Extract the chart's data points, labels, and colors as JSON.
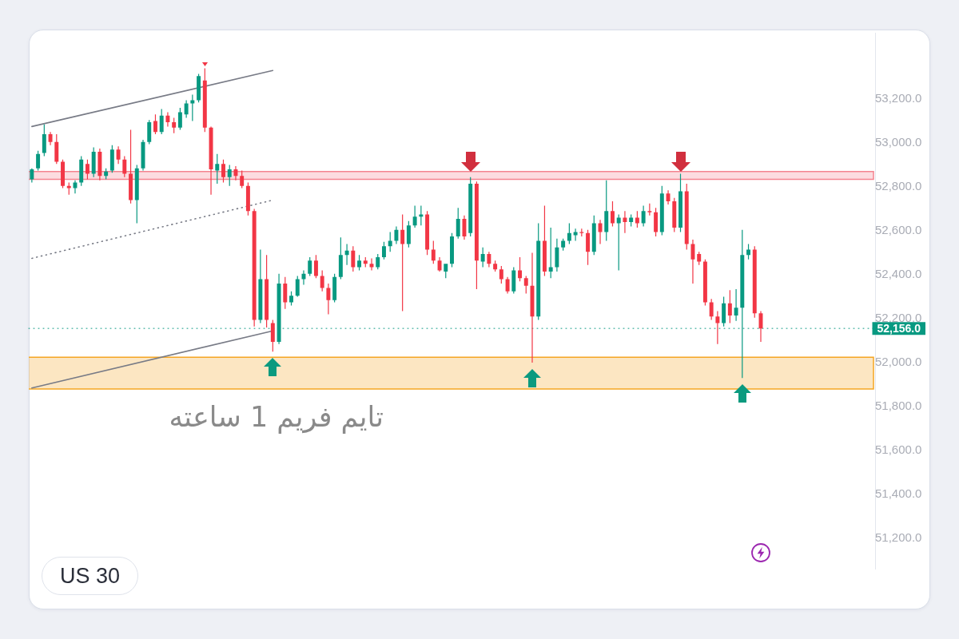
{
  "chart_data": {
    "type": "candlestick",
    "title": "US 30",
    "annotations": [
      "تایم فریم 1 ساعته"
    ],
    "categories": [
      null,
      null,
      null,
      null,
      null,
      null,
      null,
      null,
      null,
      null,
      null,
      null,
      null,
      null,
      null,
      null,
      null,
      null,
      null,
      null,
      null,
      null,
      null,
      null,
      null,
      null,
      null,
      null,
      null,
      null,
      null,
      null,
      null,
      null,
      null,
      null,
      null,
      null,
      null,
      null,
      null,
      null,
      null,
      null,
      null,
      null,
      null,
      null,
      null,
      null,
      null,
      null,
      null,
      null,
      null,
      null,
      null,
      null,
      null,
      null,
      null,
      null,
      null,
      null,
      null,
      null,
      null,
      null,
      null,
      null,
      null,
      null,
      null,
      null,
      null,
      null,
      null,
      null,
      null,
      null,
      null,
      null,
      null,
      null,
      null,
      null,
      null,
      null,
      null,
      null,
      null,
      null,
      null,
      null,
      null,
      null,
      null,
      null,
      null,
      null,
      null,
      null,
      null,
      null,
      null,
      null,
      null,
      null,
      null,
      null,
      null,
      null,
      null,
      null,
      null,
      null,
      null,
      null,
      null,
      null,
      null,
      null,
      null,
      null,
      null,
      null,
      null,
      null,
      null,
      null,
      null,
      null,
      null,
      null,
      null,
      null,
      null
    ],
    "series": [
      {
        "type": "candlestick",
        "ohlc": [
          [
            52835,
            52885,
            52820,
            52880
          ],
          [
            52885,
            52965,
            52875,
            52950
          ],
          [
            52955,
            53085,
            52940,
            53040
          ],
          [
            53040,
            53050,
            52990,
            53005
          ],
          [
            53005,
            53040,
            52905,
            52915
          ],
          [
            52915,
            52925,
            52795,
            52805
          ],
          [
            52805,
            52820,
            52765,
            52795
          ],
          [
            52795,
            52830,
            52770,
            52820
          ],
          [
            52820,
            52940,
            52805,
            52925
          ],
          [
            52905,
            52925,
            52835,
            52860
          ],
          [
            52860,
            52980,
            52845,
            52960
          ],
          [
            52960,
            52975,
            52830,
            52850
          ],
          [
            52850,
            52885,
            52835,
            52870
          ],
          [
            52875,
            52990,
            52865,
            52970
          ],
          [
            52970,
            52985,
            52905,
            52925
          ],
          [
            52925,
            52940,
            52845,
            52860
          ],
          [
            52860,
            53060,
            52725,
            52740
          ],
          [
            52740,
            52900,
            52635,
            52885
          ],
          [
            52885,
            53015,
            52875,
            53005
          ],
          [
            53005,
            53105,
            52995,
            53095
          ],
          [
            53100,
            53130,
            53040,
            53050
          ],
          [
            53050,
            53155,
            53040,
            53125
          ],
          [
            53125,
            53140,
            53075,
            53095
          ],
          [
            53095,
            53115,
            53045,
            53070
          ],
          [
            53070,
            53160,
            53060,
            53140
          ],
          [
            53130,
            53195,
            53115,
            53180
          ],
          [
            53180,
            53220,
            53100,
            53195
          ],
          [
            53195,
            53315,
            53185,
            53305
          ],
          [
            53285,
            53340,
            53050,
            53070
          ],
          [
            53070,
            53075,
            52765,
            52880
          ],
          [
            52875,
            52950,
            52815,
            52905
          ],
          [
            52905,
            52925,
            52820,
            52845
          ],
          [
            52845,
            52900,
            52805,
            52880
          ],
          [
            52880,
            52895,
            52830,
            52850
          ],
          [
            52850,
            52875,
            52795,
            52805
          ],
          [
            52805,
            52820,
            52670,
            52690
          ],
          [
            52690,
            52700,
            52165,
            52195
          ],
          [
            52195,
            52515,
            52180,
            52380
          ],
          [
            52380,
            52490,
            52160,
            52195
          ],
          [
            52180,
            52195,
            52050,
            52095
          ],
          [
            52095,
            52405,
            52085,
            52360
          ],
          [
            52360,
            52390,
            52245,
            52275
          ],
          [
            52275,
            52325,
            52260,
            52305
          ],
          [
            52305,
            52395,
            52300,
            52380
          ],
          [
            52380,
            52420,
            52355,
            52405
          ],
          [
            52405,
            52480,
            52395,
            52465
          ],
          [
            52465,
            52490,
            52385,
            52395
          ],
          [
            52395,
            52420,
            52325,
            52340
          ],
          [
            52340,
            52360,
            52220,
            52285
          ],
          [
            52285,
            52405,
            52275,
            52390
          ],
          [
            52390,
            52570,
            52380,
            52490
          ],
          [
            52490,
            52540,
            52445,
            52510
          ],
          [
            52510,
            52530,
            52415,
            52435
          ],
          [
            52435,
            52490,
            52420,
            52465
          ],
          [
            52465,
            52480,
            52435,
            52450
          ],
          [
            52450,
            52475,
            52420,
            52435
          ],
          [
            52435,
            52495,
            52425,
            52480
          ],
          [
            52480,
            52550,
            52470,
            52530
          ],
          [
            52530,
            52595,
            52505,
            52555
          ],
          [
            52555,
            52620,
            52540,
            52605
          ],
          [
            52605,
            52675,
            52235,
            52540
          ],
          [
            52540,
            52645,
            52525,
            52625
          ],
          [
            52625,
            52715,
            52615,
            52665
          ],
          [
            52665,
            52715,
            52625,
            52675
          ],
          [
            52675,
            52690,
            52490,
            52515
          ],
          [
            52515,
            52555,
            52450,
            52465
          ],
          [
            52465,
            52480,
            52415,
            52420
          ],
          [
            52415,
            52450,
            52385,
            52450
          ],
          [
            52450,
            52590,
            52435,
            52575
          ],
          [
            52575,
            52705,
            52565,
            52655
          ],
          [
            52655,
            52670,
            52560,
            52575
          ],
          [
            52590,
            52845,
            52575,
            52815
          ],
          [
            52815,
            52825,
            52335,
            52465
          ],
          [
            52460,
            52525,
            52435,
            52495
          ],
          [
            52495,
            52505,
            52435,
            52450
          ],
          [
            52450,
            52465,
            52415,
            52425
          ],
          [
            52425,
            52440,
            52360,
            52380
          ],
          [
            52380,
            52390,
            52315,
            52325
          ],
          [
            52325,
            52435,
            52315,
            52420
          ],
          [
            52420,
            52480,
            52370,
            52385
          ],
          [
            52385,
            52395,
            52315,
            52350
          ],
          [
            52350,
            52500,
            52000,
            52210
          ],
          [
            52210,
            52635,
            52195,
            52555
          ],
          [
            52555,
            52715,
            52395,
            52415
          ],
          [
            52415,
            52615,
            52385,
            52435
          ],
          [
            52435,
            52565,
            52415,
            52525
          ],
          [
            52525,
            52565,
            52510,
            52555
          ],
          [
            52555,
            52635,
            52540,
            52590
          ],
          [
            52580,
            52610,
            52555,
            52595
          ],
          [
            52595,
            52610,
            52575,
            52590
          ],
          [
            52590,
            52605,
            52445,
            52505
          ],
          [
            52505,
            52670,
            52490,
            52635
          ],
          [
            52635,
            52650,
            52540,
            52595
          ],
          [
            52595,
            52830,
            52555,
            52690
          ],
          [
            52690,
            52735,
            52620,
            52635
          ],
          [
            52635,
            52675,
            52420,
            52660
          ],
          [
            52660,
            52690,
            52590,
            52640
          ],
          [
            52640,
            52675,
            52620,
            52660
          ],
          [
            52660,
            52690,
            52615,
            52635
          ],
          [
            52635,
            52715,
            52620,
            52690
          ],
          [
            52690,
            52725,
            52670,
            52685
          ],
          [
            52685,
            52705,
            52575,
            52595
          ],
          [
            52595,
            52805,
            52580,
            52770
          ],
          [
            52770,
            52785,
            52720,
            52735
          ],
          [
            52735,
            52750,
            52595,
            52615
          ],
          [
            52615,
            52860,
            52595,
            52780
          ],
          [
            52780,
            52815,
            52515,
            52540
          ],
          [
            52540,
            52560,
            52360,
            52470
          ],
          [
            52495,
            52505,
            52445,
            52460
          ],
          [
            52460,
            52470,
            52260,
            52275
          ],
          [
            52275,
            52290,
            52195,
            52210
          ],
          [
            52210,
            52235,
            52085,
            52180
          ],
          [
            52180,
            52300,
            52165,
            52270
          ],
          [
            52270,
            52330,
            52180,
            52215
          ],
          [
            52215,
            52335,
            52190,
            52250
          ],
          [
            52250,
            52605,
            51930,
            52490
          ],
          [
            52490,
            52540,
            52470,
            52515
          ],
          [
            52515,
            52530,
            52205,
            52225
          ],
          [
            52225,
            52235,
            52095,
            52156
          ],
          null,
          null,
          null,
          null,
          null,
          null,
          null,
          null,
          null,
          null,
          null,
          null,
          null,
          null,
          null,
          null,
          null,
          null
        ],
        "colors": [
          "#089981",
          "#089981",
          "#089981",
          "#f23645",
          "#f23645",
          "#f23645",
          "#f23645",
          "#089981",
          "#089981",
          "#f23645",
          "#089981",
          "#f23645",
          "#089981",
          "#089981",
          "#f23645",
          "#f23645",
          "#f23645",
          "#089981",
          "#089981",
          "#089981",
          "#f23645",
          "#089981",
          "#f23645",
          "#f23645",
          "#089981",
          "#089981",
          "#089981",
          "#089981",
          "#f23645",
          "#f23645",
          "#089981",
          "#f23645",
          "#089981",
          "#f23645",
          "#f23645",
          "#f23645",
          "#f23645",
          "#089981",
          "#f23645",
          "#f23645",
          "#089981",
          "#f23645",
          "#089981",
          "#089981",
          "#089981",
          "#089981",
          "#f23645",
          "#f23645",
          "#f23645",
          "#089981",
          "#089981",
          "#089981",
          "#f23645",
          "#089981",
          "#f23645",
          "#f23645",
          "#089981",
          "#089981",
          "#089981",
          "#089981",
          "#f23645",
          "#089981",
          "#089981",
          "#089981",
          "#f23645",
          "#f23645",
          "#f23645",
          "#089981",
          "#089981",
          "#089981",
          "#f23645",
          "#089981",
          "#f23645",
          "#089981",
          "#f23645",
          "#f23645",
          "#f23645",
          "#f23645",
          "#089981",
          "#f23645",
          "#f23645",
          "#f23645",
          "#089981",
          "#f23645",
          "#089981",
          "#089981",
          "#089981",
          "#089981",
          "#089981",
          "#f23645",
          "#f23645",
          "#089981",
          "#f23645",
          "#089981",
          "#f23645",
          "#089981",
          "#f23645",
          "#089981",
          "#f23645",
          "#089981",
          "#f23645",
          "#f23645",
          "#089981",
          "#f23645",
          "#f23645",
          "#089981",
          "#f23645",
          "#f23645",
          "#f23645",
          "#f23645",
          "#f23645",
          "#f23645",
          "#089981",
          "#f23645",
          "#089981",
          "#089981",
          "#089981",
          "#f23645",
          "#f23645",
          null,
          null,
          null,
          null,
          null,
          null,
          null,
          null,
          null,
          null,
          null,
          null,
          null,
          null,
          null,
          null,
          null,
          null
        ]
      },
      {
        "type": "line",
        "color": "#787b86",
        "line_style": "solid",
        "values": [
          53075,
          null,
          null,
          null,
          null,
          null,
          null,
          null,
          null,
          null,
          null,
          null,
          null,
          null,
          null,
          null,
          null,
          null,
          null,
          null,
          null,
          null,
          null,
          null,
          null,
          null,
          null,
          null,
          null,
          null,
          null,
          null,
          null,
          null,
          null,
          null,
          null,
          null,
          null,
          53330,
          null,
          null,
          null,
          null,
          null,
          null,
          null,
          null,
          null,
          null,
          null,
          null,
          null,
          null,
          null,
          null,
          null,
          null,
          null,
          null,
          null,
          null,
          null,
          null,
          null,
          null,
          null,
          null,
          null,
          null,
          null,
          null,
          null,
          null,
          null,
          null,
          null,
          null,
          null,
          null,
          null,
          null,
          null,
          null,
          null,
          null,
          null,
          null,
          null,
          null,
          null,
          null,
          null,
          null,
          null,
          null,
          null,
          null,
          null,
          null,
          null,
          null,
          null,
          null,
          null,
          null,
          null,
          null,
          null,
          null,
          null,
          null,
          null,
          null,
          null,
          null,
          null,
          null,
          null,
          null,
          null,
          null,
          null,
          null,
          null,
          null,
          null,
          null,
          null,
          null,
          null,
          null,
          null,
          null,
          null,
          null,
          null
        ]
      },
      {
        "type": "line",
        "color": "#787b86",
        "line_style": "dotted",
        "values": [
          52475,
          null,
          null,
          null,
          null,
          null,
          null,
          null,
          null,
          null,
          null,
          null,
          null,
          null,
          null,
          null,
          null,
          null,
          null,
          null,
          null,
          null,
          null,
          null,
          null,
          null,
          null,
          null,
          null,
          null,
          null,
          null,
          null,
          null,
          null,
          null,
          null,
          null,
          null,
          52740,
          null,
          null,
          null,
          null,
          null,
          null,
          null,
          null,
          null,
          null,
          null,
          null,
          null,
          null,
          null,
          null,
          null,
          null,
          null,
          null,
          null,
          null,
          null,
          null,
          null,
          null,
          null,
          null,
          null,
          null,
          null,
          null,
          null,
          null,
          null,
          null,
          null,
          null,
          null,
          null,
          null,
          null,
          null,
          null,
          null,
          null,
          null,
          null,
          null,
          null,
          null,
          null,
          null,
          null,
          null,
          null,
          null,
          null,
          null,
          null,
          null,
          null,
          null,
          null,
          null,
          null,
          null,
          null,
          null,
          null,
          null,
          null,
          null,
          null,
          null,
          null,
          null,
          null,
          null,
          null,
          null,
          null,
          null,
          null,
          null,
          null,
          null,
          null,
          null,
          null,
          null,
          null,
          null,
          null,
          null,
          null,
          null
        ]
      },
      {
        "type": "line",
        "color": "#787b86",
        "line_style": "solid",
        "values": [
          51885,
          null,
          null,
          null,
          null,
          null,
          null,
          null,
          null,
          null,
          null,
          null,
          null,
          null,
          null,
          null,
          null,
          null,
          null,
          null,
          null,
          null,
          null,
          null,
          null,
          null,
          null,
          null,
          null,
          null,
          null,
          null,
          null,
          null,
          null,
          null,
          null,
          null,
          null,
          52145,
          null,
          null,
          null,
          null,
          null,
          null,
          null,
          null,
          null,
          null,
          null,
          null,
          null,
          null,
          null,
          null,
          null,
          null,
          null,
          null,
          null,
          null,
          null,
          null,
          null,
          null,
          null,
          null,
          null,
          null,
          null,
          null,
          null,
          null,
          null,
          null,
          null,
          null,
          null,
          null,
          null,
          null,
          null,
          null,
          null,
          null,
          null,
          null,
          null,
          null,
          null,
          null,
          null,
          null,
          null,
          null,
          null,
          null,
          null,
          null,
          null,
          null,
          null,
          null,
          null,
          null,
          null,
          null,
          null,
          null,
          null,
          null,
          null,
          null,
          null,
          null,
          null,
          null,
          null,
          null,
          null,
          null,
          null,
          null,
          null,
          null,
          null,
          null,
          null,
          null,
          null,
          null,
          null,
          null,
          null,
          null,
          null
        ]
      }
    ],
    "ylim": [
      51060,
      53500
    ],
    "yticks": [
      {
        "value": 51200,
        "label": "51,200.0"
      },
      {
        "value": 51400,
        "label": "51,400.0"
      },
      {
        "value": 51600,
        "label": "51,600.0"
      },
      {
        "value": 51800,
        "label": "51,800.0"
      },
      {
        "value": 52000,
        "label": "52,000.0"
      },
      {
        "value": 52200,
        "label": "52,200.0"
      },
      {
        "value": 52400,
        "label": "52,400.0"
      },
      {
        "value": 52600,
        "label": "52,600.0"
      },
      {
        "value": 52800,
        "label": "52,800.0"
      },
      {
        "value": 53000,
        "label": "53,000.0"
      },
      {
        "value": 53200,
        "label": "53,200.0"
      }
    ],
    "tick_labels": "y",
    "bands": [
      {
        "axis": "y",
        "from": 52835,
        "to": 52870,
        "color": "#f4838f"
      },
      {
        "axis": "y",
        "from": 51880,
        "to": 52025,
        "color": "#f5a623"
      }
    ],
    "ref_lines": [
      {
        "axis": "y",
        "value": 52156,
        "label": "52,156.0",
        "color": "#089981",
        "line_style": "dotted"
      }
    ]
  }
}
